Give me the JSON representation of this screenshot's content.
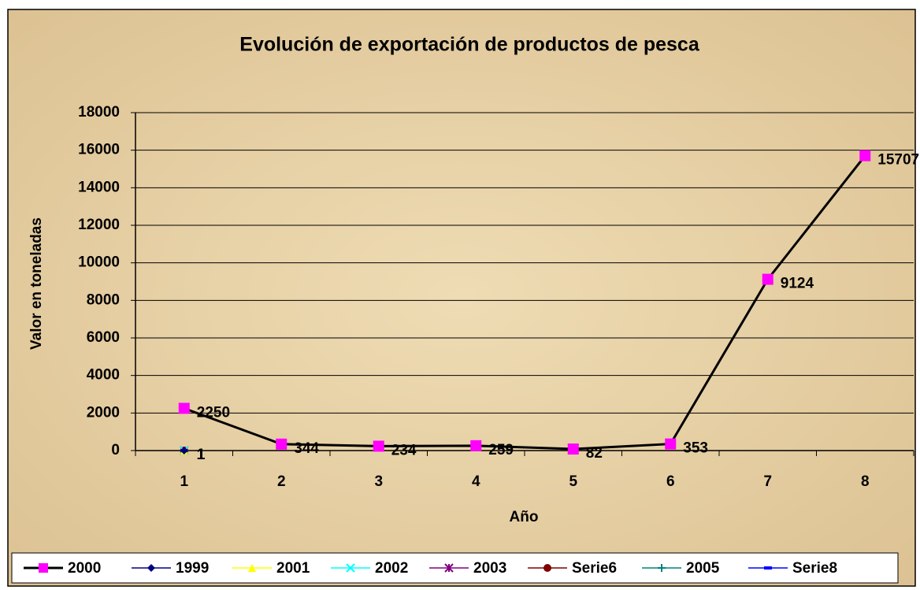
{
  "chart_data": {
    "type": "line",
    "title": "Evolución de exportación de productos de pesca",
    "x_label": "Año",
    "y_label": "Valor  en toneladas",
    "categories": [
      "1",
      "2",
      "3",
      "4",
      "5",
      "6",
      "7",
      "8"
    ],
    "ylim": [
      0,
      18000
    ],
    "yticks": [
      0,
      2000,
      4000,
      6000,
      8000,
      10000,
      12000,
      14000,
      16000,
      18000
    ],
    "grid": true,
    "legend": "bottom",
    "series": [
      {
        "name": "2000",
        "color": "#000000",
        "marker_color": "#ff00ff",
        "marker": "square",
        "values": [
          2250,
          344,
          234,
          259,
          82,
          353,
          9124,
          15707
        ]
      },
      {
        "name": "1999",
        "color": "#000080",
        "marker_color": "#000080",
        "marker": "diamond",
        "values": [
          1,
          null,
          null,
          null,
          null,
          null,
          null,
          null
        ]
      },
      {
        "name": "2001",
        "color": "#ffff00",
        "marker_color": "#ffff00",
        "marker": "triangle",
        "values": [
          1,
          null,
          null,
          null,
          null,
          null,
          null,
          null
        ]
      },
      {
        "name": "2002",
        "color": "#00ffff",
        "marker_color": "#00ffff",
        "marker": "x",
        "values": [
          1,
          null,
          null,
          null,
          null,
          null,
          null,
          null
        ]
      },
      {
        "name": "2003",
        "color": "#800080",
        "marker_color": "#800080",
        "marker": "star",
        "values": [
          1,
          null,
          null,
          null,
          null,
          null,
          null,
          null
        ]
      },
      {
        "name": "Serie6",
        "color": "#800000",
        "marker_color": "#800000",
        "marker": "circle",
        "values": [
          1,
          null,
          null,
          null,
          null,
          null,
          null,
          null
        ]
      },
      {
        "name": "2005",
        "color": "#008080",
        "marker_color": "#008080",
        "marker": "plus",
        "values": [
          1,
          null,
          null,
          null,
          null,
          null,
          null,
          null
        ]
      },
      {
        "name": "Serie8",
        "color": "#0000ff",
        "marker_color": "#0000ff",
        "marker": "dash",
        "values": [
          1,
          null,
          null,
          null,
          null,
          null,
          null,
          null
        ]
      }
    ]
  }
}
